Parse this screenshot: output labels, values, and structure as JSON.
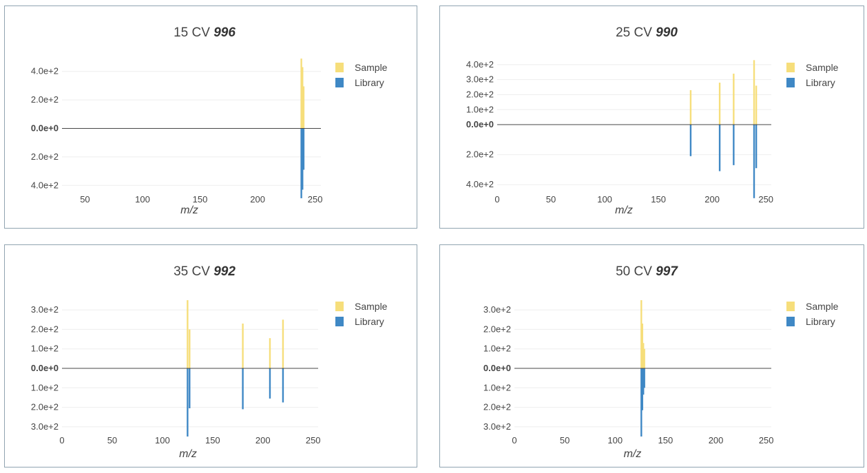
{
  "colors": {
    "sample": "#f6de7b",
    "library": "#3f88c5"
  },
  "legend": {
    "sample": "Sample",
    "library": "Library"
  },
  "chart_data": [
    {
      "type": "bar",
      "title": "15 CV",
      "title_score": "996",
      "xlabel": "m/z",
      "ylabel": "",
      "xlim": [
        30,
        255
      ],
      "ylim": [
        -500,
        500
      ],
      "xticks": [
        50,
        100,
        150,
        200,
        250
      ],
      "yticks": [
        {
          "value": 400,
          "label": "4.0e+2"
        },
        {
          "value": 200,
          "label": "2.0e+2"
        },
        {
          "value": 0,
          "label": "0.0e+0"
        },
        {
          "value": -200,
          "label": "2.0e+2"
        },
        {
          "value": -400,
          "label": "4.0e+2"
        }
      ],
      "series": [
        {
          "name": "Sample",
          "x": [
            238,
            239,
            240
          ],
          "values": [
            490,
            430,
            295
          ]
        },
        {
          "name": "Library",
          "x": [
            238,
            239,
            240
          ],
          "values": [
            -490,
            -430,
            -290
          ]
        }
      ]
    },
    {
      "type": "bar",
      "title": "25 CV",
      "title_score": "990",
      "xlabel": "m/z",
      "ylabel": "",
      "xlim": [
        0,
        255
      ],
      "ylim": [
        -500,
        450
      ],
      "xticks": [
        0,
        50,
        100,
        150,
        200,
        250
      ],
      "yticks": [
        {
          "value": 400,
          "label": "4.0e+2"
        },
        {
          "value": 300,
          "label": "3.0e+2"
        },
        {
          "value": 200,
          "label": "2.0e+2"
        },
        {
          "value": 100,
          "label": "1.0e+2"
        },
        {
          "value": 0,
          "label": "0.0e+0"
        },
        {
          "value": -200,
          "label": "2.0e+2"
        },
        {
          "value": -400,
          "label": "4.0e+2"
        }
      ],
      "series": [
        {
          "name": "Sample",
          "x": [
            180,
            207,
            220,
            239,
            241
          ],
          "values": [
            230,
            280,
            340,
            430,
            260
          ]
        },
        {
          "name": "Library",
          "x": [
            180,
            207,
            220,
            239,
            241
          ],
          "values": [
            -210,
            -310,
            -270,
            -490,
            -290
          ]
        }
      ]
    },
    {
      "type": "bar",
      "title": "35 CV",
      "title_score": "992",
      "xlabel": "m/z",
      "ylabel": "",
      "xlim": [
        0,
        255
      ],
      "ylim": [
        -350,
        350
      ],
      "xticks": [
        0,
        50,
        100,
        150,
        200,
        250
      ],
      "yticks": [
        {
          "value": 300,
          "label": "3.0e+2"
        },
        {
          "value": 200,
          "label": "2.0e+2"
        },
        {
          "value": 100,
          "label": "1.0e+2"
        },
        {
          "value": 0,
          "label": "0.0e+0"
        },
        {
          "value": -100,
          "label": "1.0e+2"
        },
        {
          "value": -200,
          "label": "2.0e+2"
        },
        {
          "value": -300,
          "label": "3.0e+2"
        }
      ],
      "series": [
        {
          "name": "Sample",
          "x": [
            125,
            127,
            180,
            207,
            220
          ],
          "values": [
            350,
            200,
            230,
            155,
            250
          ]
        },
        {
          "name": "Library",
          "x": [
            125,
            127,
            180,
            207,
            220
          ],
          "values": [
            -350,
            -205,
            -210,
            -155,
            -175
          ]
        }
      ]
    },
    {
      "type": "bar",
      "title": "50 CV",
      "title_score": "997",
      "xlabel": "m/z",
      "ylabel": "",
      "xlim": [
        0,
        255
      ],
      "ylim": [
        -350,
        350
      ],
      "xticks": [
        0,
        50,
        100,
        150,
        200,
        250
      ],
      "yticks": [
        {
          "value": 300,
          "label": "3.0e+2"
        },
        {
          "value": 200,
          "label": "2.0e+2"
        },
        {
          "value": 100,
          "label": "1.0e+2"
        },
        {
          "value": 0,
          "label": "0.0e+0"
        },
        {
          "value": -100,
          "label": "1.0e+2"
        },
        {
          "value": -200,
          "label": "2.0e+2"
        },
        {
          "value": -300,
          "label": "3.0e+2"
        }
      ],
      "series": [
        {
          "name": "Sample",
          "x": [
            126,
            127,
            128,
            129
          ],
          "values": [
            350,
            230,
            130,
            100
          ]
        },
        {
          "name": "Library",
          "x": [
            126,
            127,
            128,
            129
          ],
          "values": [
            -350,
            -215,
            -135,
            -100
          ]
        }
      ]
    }
  ]
}
